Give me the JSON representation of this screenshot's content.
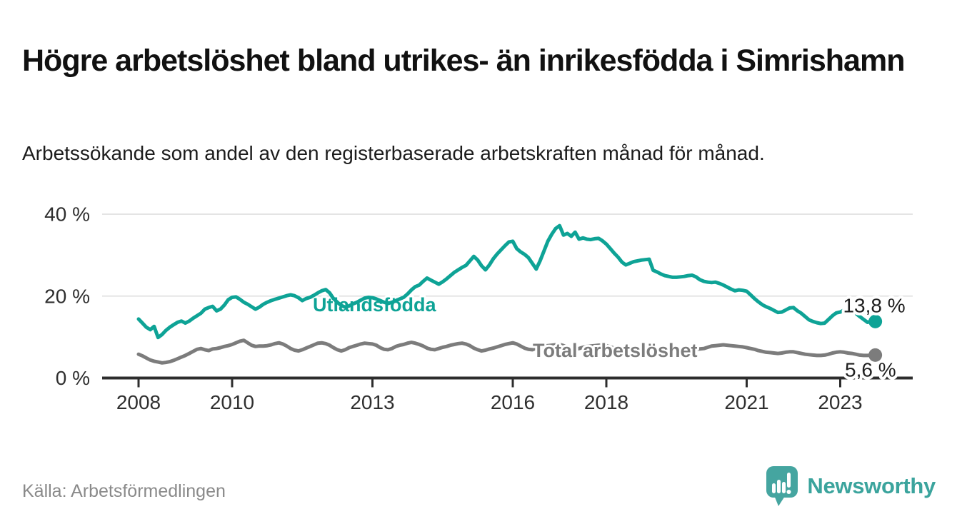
{
  "header": {
    "title": "Högre arbetslöshet bland utrikes- än inrikesfödda i Simrishamn",
    "subtitle": "Arbetssökande som andel av den registerbaserade arbetskraften månad för månad."
  },
  "chart_data": {
    "type": "line",
    "title": "Högre arbetslöshet bland utrikes- än inrikesfödda i Simrishamn",
    "subtitle": "Arbetssökande som andel av den registerbaserade arbetskraften månad för månad.",
    "x_unit": "month",
    "x_start_year": 2008,
    "x_step_months": 1,
    "x_axis": {
      "tick_years": [
        2008,
        2010,
        2013,
        2016,
        2018,
        2021,
        2023
      ],
      "tick_labels": [
        "2008",
        "2010",
        "2013",
        "2016",
        "2018",
        "2021",
        "2023"
      ]
    },
    "y_axis": {
      "ticks": [
        0,
        20,
        40
      ],
      "tick_labels": [
        "0 %",
        "20 %",
        "40 %"
      ],
      "range": [
        0,
        41.5
      ]
    },
    "grid": "horizontal",
    "legend_position": "inline-on-lines",
    "series": [
      {
        "name": "Utlandsfödda",
        "color": "#0ea396",
        "end_value_label": "13,8 %",
        "values": [
          14.4,
          13.4,
          12.4,
          11.8,
          12.6,
          9.9,
          10.6,
          11.6,
          12.4,
          13.0,
          13.6,
          13.9,
          13.4,
          13.9,
          14.6,
          15.2,
          15.8,
          16.8,
          17.2,
          17.5,
          16.4,
          16.8,
          17.8,
          19.1,
          19.7,
          19.8,
          19.2,
          18.5,
          18.0,
          17.4,
          16.8,
          17.3,
          18.0,
          18.5,
          18.9,
          19.2,
          19.5,
          19.8,
          20.1,
          20.3,
          20.1,
          19.6,
          18.9,
          19.4,
          19.7,
          20.2,
          20.8,
          21.3,
          21.6,
          20.8,
          19.4,
          18.5,
          17.7,
          17.3,
          17.6,
          18.1,
          18.5,
          19.0,
          19.5,
          19.7,
          19.6,
          19.3,
          18.9,
          18.5,
          18.2,
          18.5,
          18.9,
          19.3,
          19.7,
          20.5,
          21.5,
          22.3,
          22.7,
          23.6,
          24.4,
          23.9,
          23.4,
          22.9,
          23.5,
          24.2,
          25.0,
          25.8,
          26.4,
          27.0,
          27.5,
          28.6,
          29.7,
          28.8,
          27.4,
          26.4,
          27.6,
          29.1,
          30.3,
          31.3,
          32.3,
          33.2,
          33.4,
          31.6,
          30.8,
          30.2,
          29.4,
          28.0,
          26.6,
          28.6,
          31.0,
          33.4,
          35.1,
          36.5,
          37.2,
          34.9,
          35.3,
          34.6,
          35.6,
          33.9,
          34.2,
          33.9,
          33.8,
          34.0,
          34.1,
          33.5,
          32.7,
          31.6,
          30.5,
          29.5,
          28.3,
          27.6,
          28.0,
          28.4,
          28.6,
          28.8,
          28.9,
          29.0,
          26.3,
          25.9,
          25.4,
          25.0,
          24.8,
          24.6,
          24.6,
          24.7,
          24.8,
          25.0,
          25.1,
          24.7,
          24.0,
          23.6,
          23.4,
          23.3,
          23.4,
          23.1,
          22.7,
          22.2,
          21.7,
          21.3,
          21.5,
          21.4,
          21.2,
          20.3,
          19.4,
          18.6,
          17.9,
          17.4,
          17.0,
          16.5,
          16.0,
          16.1,
          16.6,
          17.1,
          17.2,
          16.4,
          15.8,
          15.0,
          14.2,
          13.8,
          13.5,
          13.3,
          13.4,
          14.3,
          15.2,
          15.9,
          16.1,
          16.6,
          16.7,
          16.4,
          15.8,
          15.0,
          14.3,
          13.6,
          13.9,
          13.8
        ]
      },
      {
        "name": "Total arbetslöshet",
        "color": "#7c7c7c",
        "end_value_label": "5,6 %",
        "values": [
          5.8,
          5.4,
          4.9,
          4.4,
          4.1,
          3.9,
          3.7,
          3.8,
          4.0,
          4.3,
          4.7,
          5.1,
          5.5,
          6.0,
          6.5,
          7.0,
          7.2,
          6.9,
          6.7,
          7.1,
          7.2,
          7.4,
          7.7,
          7.9,
          8.2,
          8.6,
          9.0,
          9.2,
          8.6,
          8.0,
          7.7,
          7.8,
          7.8,
          7.9,
          8.1,
          8.4,
          8.6,
          8.3,
          7.8,
          7.2,
          6.8,
          6.6,
          6.9,
          7.3,
          7.7,
          8.1,
          8.5,
          8.6,
          8.4,
          8.0,
          7.4,
          6.9,
          6.6,
          6.9,
          7.4,
          7.7,
          8.0,
          8.3,
          8.5,
          8.4,
          8.3,
          8.0,
          7.4,
          7.0,
          6.9,
          7.2,
          7.7,
          8.0,
          8.2,
          8.5,
          8.7,
          8.5,
          8.2,
          7.8,
          7.3,
          7.0,
          6.9,
          7.2,
          7.5,
          7.7,
          8.0,
          8.2,
          8.4,
          8.5,
          8.3,
          7.9,
          7.3,
          6.9,
          6.6,
          6.8,
          7.1,
          7.3,
          7.6,
          7.9,
          8.2,
          8.4,
          8.6,
          8.3,
          7.8,
          7.3,
          7.0,
          6.9,
          7.3,
          7.6,
          7.8,
          7.9,
          8.0,
          8.1,
          8.2,
          7.9,
          7.5,
          7.2,
          7.0,
          7.2,
          7.5,
          7.7,
          7.8,
          7.9,
          8.0,
          8.0,
          7.9,
          7.6,
          7.3,
          7.0,
          6.8,
          6.6,
          6.8,
          7.0,
          7.1,
          7.2,
          7.3,
          7.3,
          7.0,
          6.8,
          6.6,
          6.4,
          6.3,
          6.3,
          6.5,
          6.6,
          6.7,
          6.8,
          6.9,
          7.0,
          7.1,
          7.2,
          7.5,
          7.8,
          7.9,
          8.0,
          8.1,
          8.0,
          7.9,
          7.8,
          7.7,
          7.6,
          7.4,
          7.2,
          7.0,
          6.7,
          6.5,
          6.3,
          6.2,
          6.1,
          6.0,
          6.1,
          6.3,
          6.4,
          6.4,
          6.2,
          6.0,
          5.8,
          5.7,
          5.6,
          5.5,
          5.5,
          5.6,
          5.8,
          6.1,
          6.3,
          6.4,
          6.3,
          6.1,
          6.0,
          5.8,
          5.6,
          5.5,
          5.5,
          5.6,
          5.6
        ]
      }
    ]
  },
  "footer": {
    "source": "Källa: Arbetsförmedlingen",
    "brand": "Newsworthy"
  },
  "colors": {
    "accent_teal": "#0ea396",
    "logo_teal": "#45a5a0",
    "series_gray": "#7c7c7c",
    "grid": "#dcdcdc",
    "axis": "#2d2d2d",
    "text_dark": "#111111",
    "text_muted": "#8a8a8a"
  }
}
